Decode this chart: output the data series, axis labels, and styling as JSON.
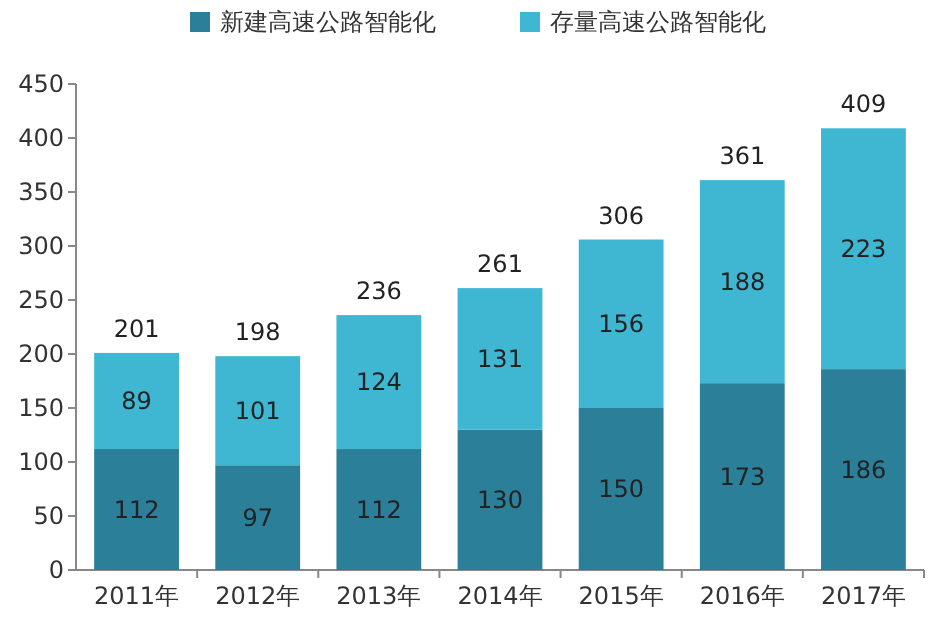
{
  "chart_data": {
    "type": "bar",
    "stacked": true,
    "categories": [
      "2011年",
      "2012年",
      "2013年",
      "2014年",
      "2015年",
      "2016年",
      "2017年"
    ],
    "series": [
      {
        "name": "新建高速公路智能化",
        "color": "#2b7f98",
        "values": [
          112,
          97,
          112,
          130,
          150,
          173,
          186
        ]
      },
      {
        "name": "存量高速公路智能化",
        "color": "#3fb6d2",
        "values": [
          89,
          101,
          124,
          131,
          156,
          188,
          223
        ]
      }
    ],
    "totals": [
      "201",
      "198",
      "236",
      "261",
      "306",
      "361",
      "409"
    ],
    "ylim": [
      0,
      450
    ],
    "yticks": [
      0,
      50,
      100,
      150,
      200,
      250,
      300,
      350,
      400,
      450
    ],
    "data_labels": true,
    "legend": "top"
  }
}
